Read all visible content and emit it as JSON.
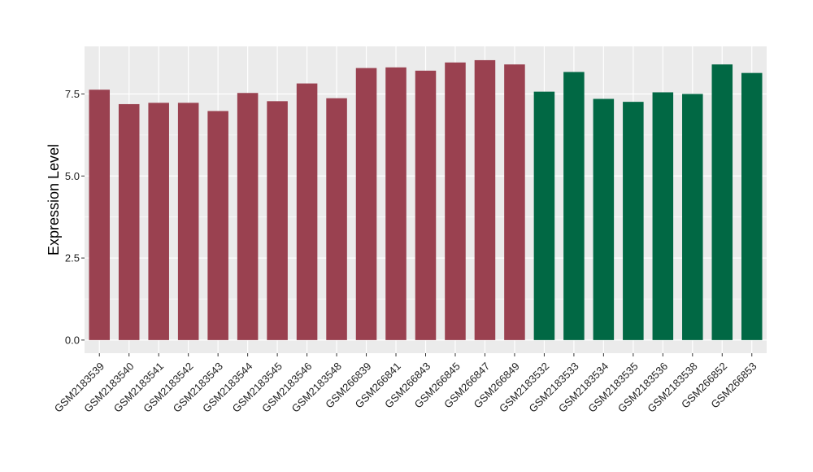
{
  "chart_data": {
    "type": "bar",
    "categories": [
      "GSM2183539",
      "GSM2183540",
      "GSM2183541",
      "GSM2183542",
      "GSM2183543",
      "GSM2183544",
      "GSM2183545",
      "GSM2183546",
      "GSM2183548",
      "GSM266839",
      "GSM266841",
      "GSM266843",
      "GSM266845",
      "GSM266847",
      "GSM266849",
      "GSM2183532",
      "GSM2183533",
      "GSM2183534",
      "GSM2183535",
      "GSM2183536",
      "GSM2183538",
      "GSM266852",
      "GSM266853"
    ],
    "values": [
      7.63,
      7.19,
      7.23,
      7.23,
      6.98,
      7.53,
      7.28,
      7.82,
      7.37,
      8.29,
      8.31,
      8.21,
      8.46,
      8.53,
      8.4,
      7.57,
      8.17,
      7.35,
      7.26,
      7.55,
      7.5,
      8.4,
      8.14
    ],
    "groups": [
      "a",
      "a",
      "a",
      "a",
      "a",
      "a",
      "a",
      "a",
      "a",
      "a",
      "a",
      "a",
      "a",
      "a",
      "a",
      "b",
      "b",
      "b",
      "b",
      "b",
      "b",
      "b",
      "b"
    ],
    "group_colors": {
      "a": "#9a4150",
      "b": "#016844"
    },
    "ylabel": "Expression Level",
    "xlabel": "",
    "ylim": [
      -0.4,
      8.95
    ],
    "yticks": [
      0.0,
      2.5,
      5.0,
      7.5
    ],
    "ytick_labels": [
      "0.0",
      "2.5",
      "5.0",
      "7.5"
    ],
    "grid": true,
    "panel_background": "#ebebeb",
    "grid_color": "#ffffff"
  }
}
